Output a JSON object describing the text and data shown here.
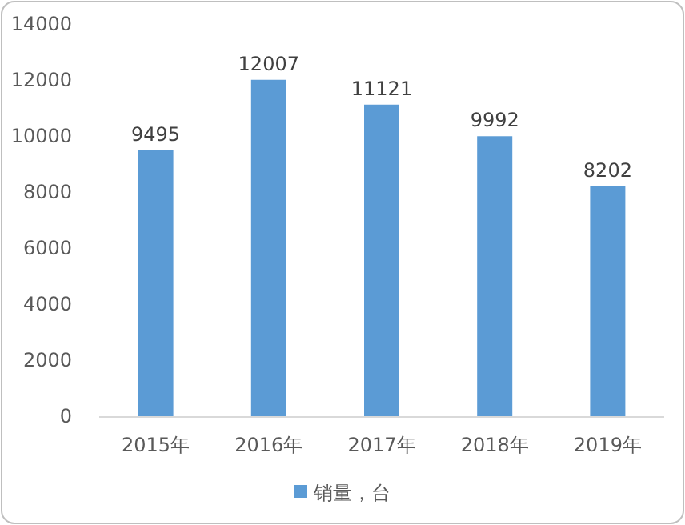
{
  "chart_data": {
    "type": "bar",
    "categories": [
      "2015年",
      "2016年",
      "2017年",
      "2018年",
      "2019年"
    ],
    "series": [
      {
        "name": "销量，台",
        "color": "#5b9bd5",
        "values": [
          9495,
          12007,
          11121,
          9992,
          8202
        ]
      }
    ],
    "ylim": [
      0,
      14000
    ],
    "yticks": [
      0,
      2000,
      4000,
      6000,
      8000,
      10000,
      12000,
      14000
    ],
    "data_labels": true,
    "legend": "bottom",
    "grid": false
  }
}
